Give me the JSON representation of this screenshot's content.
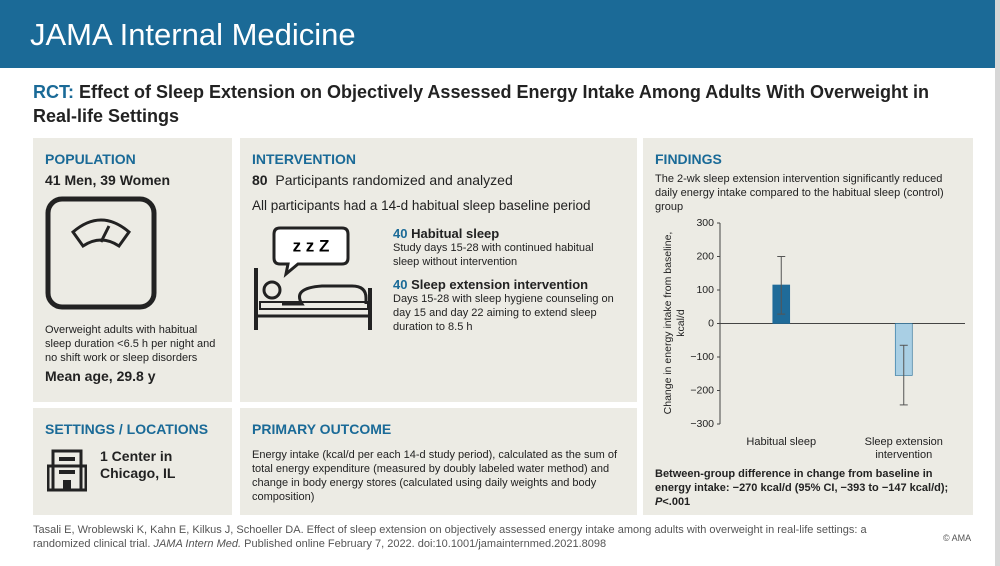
{
  "header": {
    "journal": "JAMA Internal Medicine"
  },
  "title": {
    "prefix": "RCT:",
    "text": "Effect of Sleep Extension on Objectively Assessed Energy Intake Among Adults With Overweight in Real-life Settings"
  },
  "population": {
    "heading": "POPULATION",
    "summary": "41 Men, 39 Women",
    "description": "Overweight adults with habitual sleep duration <6.5 h per night and no shift work or sleep disorders",
    "mean_age": "Mean age, 29.8 y"
  },
  "intervention": {
    "heading": "INTERVENTION",
    "participants_count": 80,
    "participants_text": "Participants randomized and analyzed",
    "baseline": "All participants had a 14-d habitual sleep baseline period",
    "icon_text": "z z Z",
    "groups": [
      {
        "count": 40,
        "name": "Habitual sleep",
        "description": "Study days 15-28 with continued habitual sleep without intervention"
      },
      {
        "count": 40,
        "name": "Sleep extension intervention",
        "description": "Days 15-28 with sleep hygiene counseling on day 15 and day 22 aiming to extend sleep duration to 8.5 h"
      }
    ]
  },
  "settings": {
    "heading": "SETTINGS / LOCATIONS",
    "text": "1 Center in Chicago, IL"
  },
  "primary_outcome": {
    "heading": "PRIMARY OUTCOME",
    "text": "Energy intake (kcal/d per each 14-d study period), calculated as the sum of total energy expenditure (measured by doubly labeled water method) and change in body energy stores (calculated using daily weights and body composition)"
  },
  "findings": {
    "heading": "FINDINGS",
    "summary": "The 2-wk sleep extension intervention significantly reduced daily energy intake compared to the habitual sleep (control) group",
    "chart_data": {
      "type": "bar",
      "y_label": "Change in energy intake from baseline, kcal/d",
      "categories": [
        "Habitual sleep",
        "Sleep extension intervention"
      ],
      "values": [
        115,
        -155
      ],
      "ci_low": [
        28,
        -243
      ],
      "ci_high": [
        200,
        -65
      ],
      "colors": [
        "#1f6b99",
        "#a9cfe4"
      ],
      "ylim": [
        -300,
        300
      ],
      "yticks": [
        {
          "value": -300,
          "label": "−300"
        },
        {
          "value": -200,
          "label": "−200"
        },
        {
          "value": -100,
          "label": "−100"
        },
        0,
        100,
        200,
        300
      ]
    },
    "result_text": "Between-group difference in change from baseline in energy intake: −270 kcal/d (95% CI, −393 to −147 kcal/d); ",
    "result_p": "P",
    "result_p_value": "<.001"
  },
  "citation": {
    "authors": "Tasali E, Wroblewski K, Kahn E, Kilkus J, Schoeller DA. Effect of sleep extension on objectively assessed energy intake among adults with overweight in real-life settings: a randomized clinical trial. ",
    "journal": "JAMA Intern Med.",
    "published": " Published online February 7, 2022. doi:10.1001/jamainternmed.2021.8098",
    "copyright": "© AMA"
  }
}
